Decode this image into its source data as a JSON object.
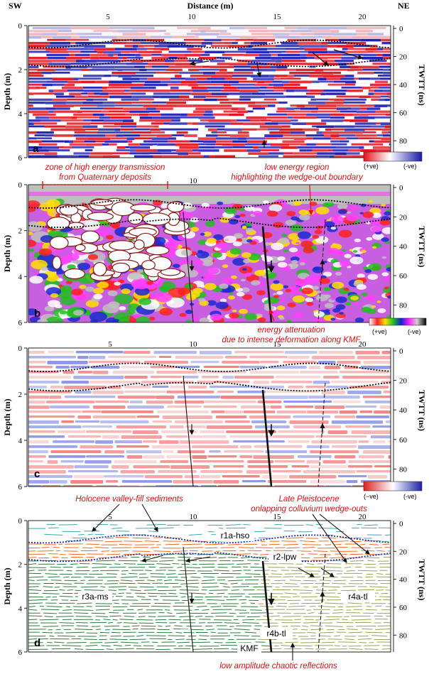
{
  "header": {
    "sw": "SW",
    "ne": "NE",
    "axis_title": "Distance (m)"
  },
  "x_ticks": [
    "5",
    "10",
    "15",
    "20"
  ],
  "depth_title": "Depth (m)",
  "depth_ticks": [
    "0",
    "2",
    "4",
    "6"
  ],
  "twtt_title": "TWTT (ns)",
  "twtt_ticks": [
    "0",
    "20",
    "40",
    "60",
    "80"
  ],
  "panels": {
    "a": {
      "letter": "a",
      "legend_pos": "(+ve)",
      "legend_neg": "(-ve)"
    },
    "b": {
      "letter": "b",
      "legend_pos": "(+ve)",
      "legend_neg": "(-ve)",
      "ann_zone_1": "zone of high energy transmission",
      "ann_zone_2": "from Quaternary deposits",
      "ann_low_1": "low energy region",
      "ann_low_2": "highlighting the wedge-out boundary",
      "ann_att_1": "energy attenuation",
      "ann_att_2": "due to intense deformation along KMF"
    },
    "c": {
      "letter": "c",
      "legend_neg_left": "(−ve)",
      "legend_neg_right": "(-ve)"
    },
    "d": {
      "letter": "d",
      "ann_holo": "Holocene valley-fill sediments",
      "ann_late_1": "Late Pleistocene",
      "ann_late_2": "onlapping colluvium wedge-outs",
      "unit_r1a": "r1a-hso",
      "unit_r2": "r2-lpw",
      "unit_r3a": "r3a-ms",
      "unit_r4a": "r4a-tl",
      "unit_r4b": "r4b-tl",
      "fault": "KMF",
      "ann_low_amp": "low amplitude chaotic reflections"
    }
  },
  "colors": {
    "red": "#e0201a",
    "blue": "#2530c8",
    "annotation": "#e01010",
    "teal": "#3aa6ad",
    "orange": "#ef6a1e",
    "green": "#2f7a3a",
    "olive": "#9aa25a",
    "boundary": "#1a2fb0"
  }
}
